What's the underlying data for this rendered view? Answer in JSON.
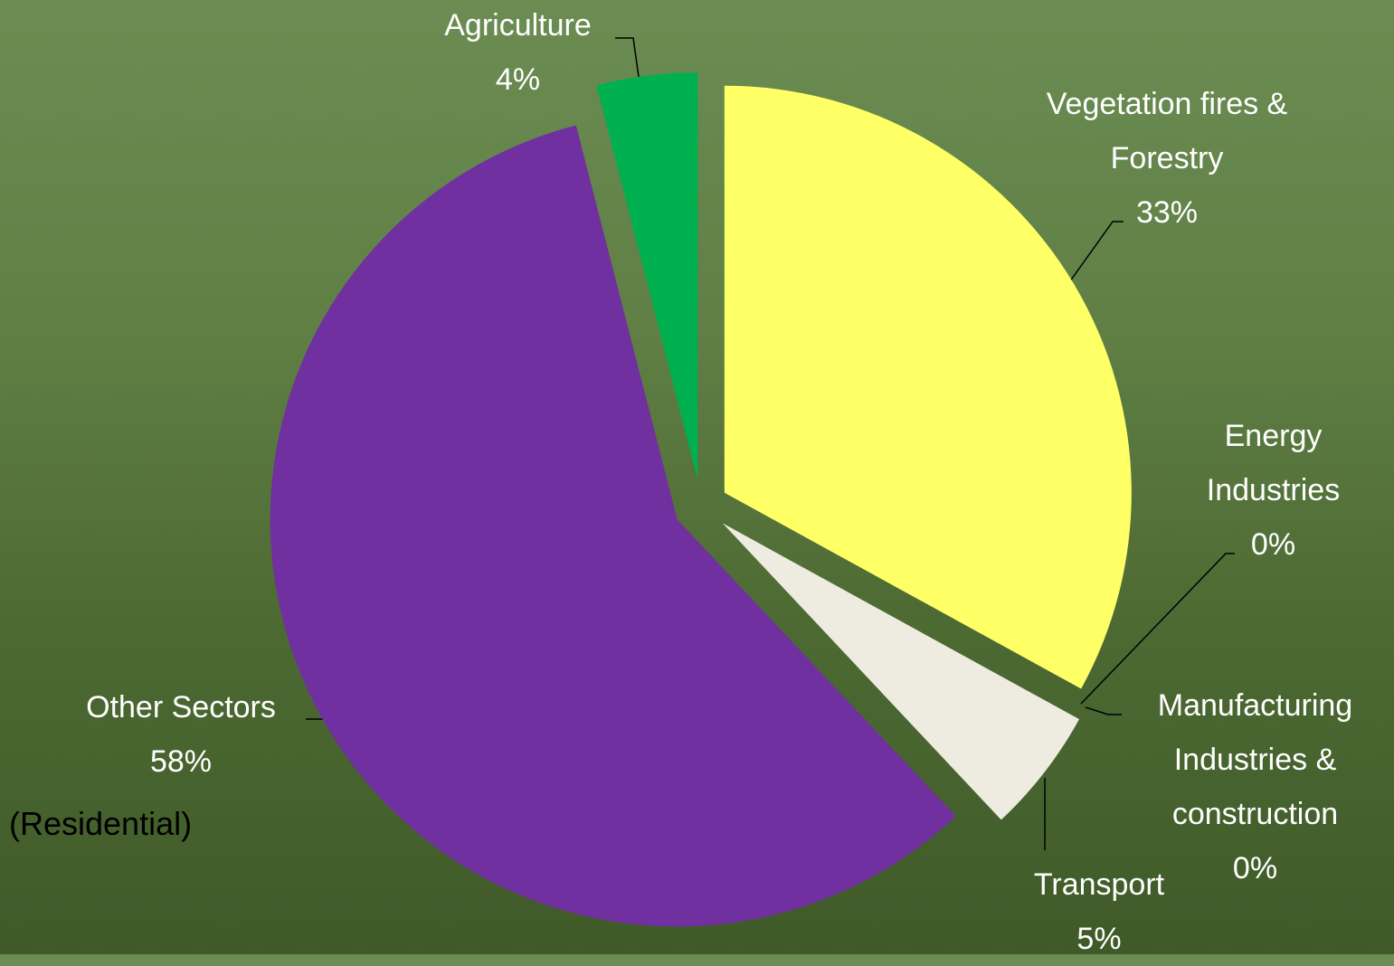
{
  "chart_data": {
    "type": "pie",
    "categories": [
      "Vegetation fires & Forestry",
      "Energy Industries",
      "Manufacturing Industries & construction",
      "Transport",
      "Other Sectors",
      "Agriculture"
    ],
    "values": [
      33,
      0,
      0,
      5,
      58,
      4
    ],
    "value_labels": [
      "33%",
      "0%",
      "0%",
      "5%",
      "58%",
      "4%"
    ],
    "colors": [
      "#ffff66",
      "#c00000",
      "#ff0000",
      "#eeebe0",
      "#7030a0",
      "#00b050"
    ],
    "annotation": "(Residential)"
  }
}
